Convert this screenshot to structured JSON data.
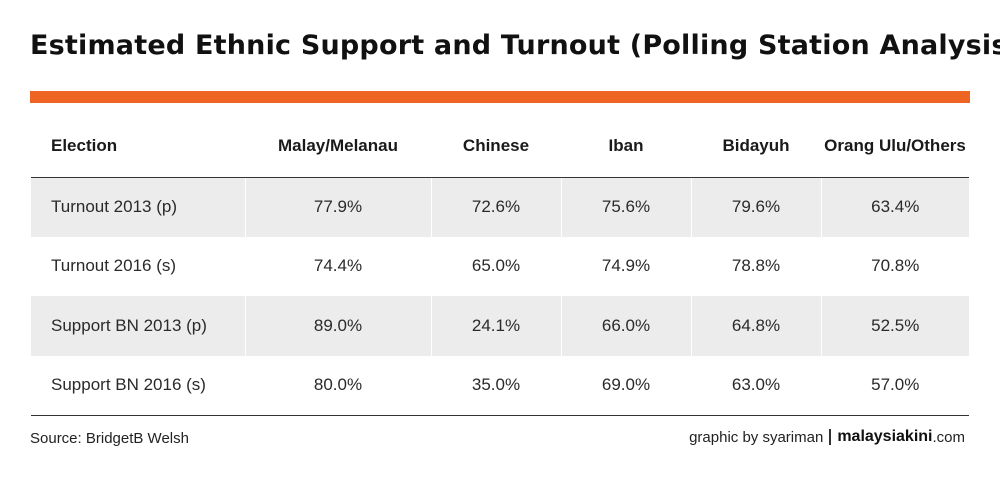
{
  "title": "Estimated Ethnic Support and Turnout (Polling Station Analysis)",
  "colors": {
    "accent": "#ee6422",
    "row_shade": "#ececec",
    "text": "#1a1a1a"
  },
  "chart_data": {
    "type": "table",
    "title": "Estimated Ethnic Support and Turnout (Polling Station Analysis)",
    "columns": [
      "Election",
      "Malay/Melanau",
      "Chinese",
      "Iban",
      "Bidayuh",
      "Orang Ulu/Others"
    ],
    "rows": [
      {
        "label": "Turnout 2013 (p)",
        "values": [
          "77.9%",
          "72.6%",
          "75.6%",
          "79.6%",
          "63.4%"
        ]
      },
      {
        "label": "Turnout 2016 (s)",
        "values": [
          "74.4%",
          "65.0%",
          "74.9%",
          "78.8%",
          "70.8%"
        ]
      },
      {
        "label": "Support BN 2013 (p)",
        "values": [
          "89.0%",
          "24.1%",
          "66.0%",
          "64.8%",
          "52.5%"
        ]
      },
      {
        "label": "Support BN 2016 (s)",
        "values": [
          "80.0%",
          "35.0%",
          "69.0%",
          "63.0%",
          "57.0%"
        ]
      }
    ]
  },
  "footer": {
    "source": "Source: BridgetB Welsh",
    "credit": "graphic by syariman",
    "brand": "malaysiakini",
    "brand_tld": ".com"
  }
}
